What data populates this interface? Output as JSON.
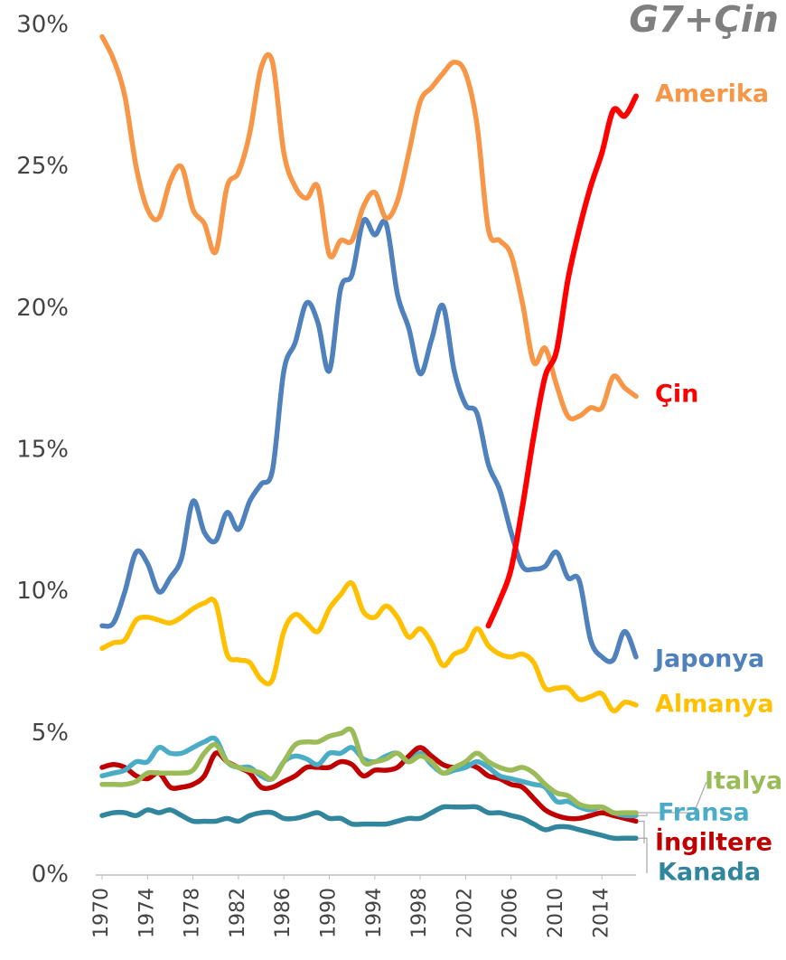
{
  "chart_data": {
    "type": "line",
    "title": "G7+Çin",
    "x": [
      1970,
      1971,
      1972,
      1973,
      1974,
      1975,
      1976,
      1977,
      1978,
      1979,
      1980,
      1981,
      1982,
      1983,
      1984,
      1985,
      1986,
      1987,
      1988,
      1989,
      1990,
      1991,
      1992,
      1993,
      1994,
      1995,
      1996,
      1997,
      1998,
      1999,
      2000,
      2001,
      2002,
      2003,
      2004,
      2005,
      2006,
      2007,
      2008,
      2009,
      2010,
      2011,
      2012,
      2013,
      2014,
      2015,
      2016,
      2017
    ],
    "xlim": [
      1970,
      2017
    ],
    "xticks": [
      1970,
      1974,
      1978,
      1982,
      1986,
      1990,
      1994,
      1998,
      2002,
      2006,
      2010,
      2014
    ],
    "ylim": [
      0,
      30
    ],
    "yticks": [
      {
        "value": 0,
        "label": "0%"
      },
      {
        "value": 5,
        "label": "5%"
      },
      {
        "value": 10,
        "label": "10%"
      },
      {
        "value": 15,
        "label": "15%"
      },
      {
        "value": 20,
        "label": "20%"
      },
      {
        "value": 25,
        "label": "25%"
      },
      {
        "value": 30,
        "label": "30%"
      }
    ],
    "series": [
      {
        "name": "Amerika",
        "color": "#f79646",
        "values": [
          29.6,
          28.8,
          27.5,
          25,
          23.5,
          23.2,
          24.5,
          25,
          23.5,
          23,
          22,
          24.3,
          24.8,
          26.2,
          28.5,
          28.7,
          25.5,
          24.3,
          23.9,
          24.3,
          21.9,
          22.4,
          22.4,
          23.6,
          24.1,
          23.2,
          23.8,
          25.5,
          27.3,
          27.8,
          28.3,
          28.7,
          28.3,
          26.5,
          22.8,
          22.4,
          21.9,
          20.2,
          18.1,
          18.6,
          17.3,
          16.2,
          16.2,
          16.5,
          16.5,
          17.6,
          17.2,
          16.9
        ]
      },
      {
        "name": "Çin",
        "color": "#ff0000",
        "values": [
          null,
          null,
          null,
          null,
          null,
          null,
          null,
          null,
          null,
          null,
          null,
          null,
          null,
          null,
          null,
          null,
          null,
          null,
          null,
          null,
          null,
          null,
          null,
          null,
          null,
          null,
          null,
          null,
          null,
          null,
          null,
          null,
          null,
          null,
          8.8,
          9.7,
          10.8,
          13,
          15.5,
          17.6,
          18.5,
          21,
          22.8,
          24.3,
          25.5,
          27,
          26.8,
          27.5
        ]
      },
      {
        "name": "Japonya",
        "color": "#4f81bd",
        "values": [
          8.8,
          8.9,
          10,
          11.4,
          11,
          10,
          10.5,
          11.2,
          13.2,
          12.1,
          11.8,
          12.8,
          12.2,
          13.2,
          13.8,
          14.3,
          17.8,
          18.8,
          20.2,
          19.5,
          17.8,
          20.7,
          21.2,
          23.1,
          22.6,
          23,
          20.5,
          19.3,
          17.7,
          18.9,
          20.1,
          17.8,
          16.6,
          16.3,
          14.5,
          13.6,
          12.1,
          10.9,
          10.8,
          10.9,
          11.4,
          10.5,
          10.4,
          8.3,
          7.7,
          7.6,
          8.6,
          7.7
        ]
      },
      {
        "name": "Almanya",
        "color": "#ffc000",
        "values": [
          8,
          8.2,
          8.3,
          9,
          9.1,
          9,
          8.9,
          9.1,
          9.4,
          9.6,
          9.6,
          7.8,
          7.6,
          7.5,
          6.9,
          6.9,
          8.6,
          9.2,
          8.9,
          8.6,
          9.4,
          9.9,
          10.3,
          9.3,
          9.1,
          9.5,
          9.1,
          8.4,
          8.7,
          8.2,
          7.4,
          7.8,
          8,
          8.7,
          8.1,
          7.8,
          7.7,
          7.8,
          7.5,
          6.6,
          6.6,
          6.6,
          6.2,
          6.3,
          6.4,
          5.8,
          6.1,
          6
        ]
      },
      {
        "name": "Italya",
        "color": "#9bbb59",
        "values": [
          3.2,
          3.2,
          3.2,
          3.3,
          3.6,
          3.6,
          3.6,
          3.6,
          3.7,
          4.3,
          4.6,
          4,
          3.8,
          3.7,
          3.6,
          3.4,
          4,
          4.6,
          4.7,
          4.7,
          4.9,
          5,
          5.1,
          4,
          4,
          4.1,
          4.3,
          4,
          4.2,
          4,
          3.6,
          3.8,
          4,
          4.3,
          4,
          3.8,
          3.7,
          3.8,
          3.6,
          3.2,
          2.9,
          2.8,
          2.5,
          2.4,
          2.4,
          2.2,
          2.2,
          2.2
        ]
      },
      {
        "name": "Fransa",
        "color": "#4bacc6",
        "values": [
          3.5,
          3.6,
          3.7,
          4,
          4,
          4.5,
          4.3,
          4.3,
          4.5,
          4.7,
          4.8,
          4,
          3.8,
          3.8,
          3.5,
          3.4,
          4,
          4.2,
          4.1,
          3.9,
          4.3,
          4.3,
          4.5,
          4.1,
          4,
          4.2,
          4.3,
          4,
          4.3,
          3.9,
          3.6,
          3.7,
          3.8,
          4,
          3.8,
          3.5,
          3.4,
          3.3,
          3.2,
          3.1,
          2.6,
          2.6,
          2.4,
          2.3,
          2.4,
          2.2,
          2.1,
          2.1
        ]
      },
      {
        "name": "İngiltere",
        "color": "#c00000",
        "values": [
          3.8,
          3.9,
          3.8,
          3.5,
          3.4,
          3.6,
          3.1,
          3.1,
          3.2,
          3.5,
          4.3,
          4,
          3.8,
          3.6,
          3.1,
          3.1,
          3.3,
          3.5,
          3.8,
          3.8,
          3.8,
          4,
          3.9,
          3.5,
          3.7,
          3.7,
          3.8,
          4.2,
          4.5,
          4.2,
          3.9,
          3.8,
          3.9,
          3.8,
          3.5,
          3.4,
          3.2,
          3.1,
          2.7,
          2.3,
          2.1,
          2,
          2,
          2.1,
          2.2,
          2.1,
          2,
          1.9
        ]
      },
      {
        "name": "Kanada",
        "color": "#31859c",
        "values": [
          2.1,
          2.2,
          2.2,
          2.1,
          2.3,
          2.2,
          2.3,
          2.1,
          1.9,
          1.9,
          1.9,
          2,
          1.9,
          2.1,
          2.2,
          2.2,
          2,
          2,
          2.1,
          2.2,
          2,
          2,
          1.8,
          1.8,
          1.8,
          1.8,
          1.9,
          2,
          2,
          2.2,
          2.4,
          2.4,
          2.4,
          2.4,
          2.2,
          2.2,
          2.1,
          2,
          1.8,
          1.6,
          1.7,
          1.7,
          1.6,
          1.5,
          1.4,
          1.3,
          1.3,
          1.3
        ]
      }
    ]
  }
}
